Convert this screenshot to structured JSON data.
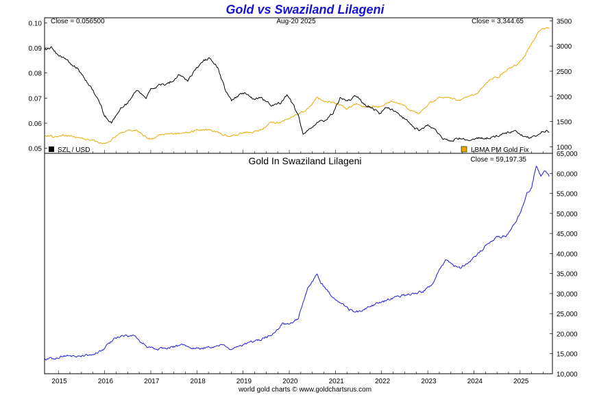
{
  "title": "Gold vs Swaziland Lilageni",
  "footer": "world gold charts © www.goldchartsrus.com",
  "colors": {
    "title": "#1414d2",
    "szl_line": "#000000",
    "gold_usd_line": "#e8a800",
    "gold_szl_line": "#1a1adc",
    "frame": "#000000",
    "background": "#ffffff"
  },
  "chart_data": [
    {
      "type": "line",
      "panel": "top",
      "title": "",
      "x_ticks": [
        "2015",
        "2016",
        "2017",
        "2018",
        "2019",
        "2020",
        "2021",
        "2022",
        "2023",
        "2024",
        "2025"
      ],
      "x_range": [
        2014.7,
        2025.7
      ],
      "left_axis": {
        "ticks": [
          "0.10",
          "0.09",
          "0.08",
          "0.07",
          "0.06",
          "0.05"
        ],
        "range": [
          0.048,
          0.102
        ]
      },
      "right_axis": {
        "ticks": [
          "3500",
          "3000",
          "2500",
          "2000",
          "1500",
          "1000"
        ],
        "range": [
          870,
          3560
        ]
      },
      "header": {
        "left": "Close = 0.056500",
        "center": "Aug-20  2025",
        "right": "Close = 3,344.65"
      },
      "legend": {
        "left": "SZL / USD",
        "right": "LBMA PM Gold Fix",
        "placement": "bottom"
      },
      "series": [
        {
          "name": "SZL / USD",
          "axis": "left",
          "x": [
            2014.7,
            2014.85,
            2015.0,
            2015.2,
            2015.4,
            2015.6,
            2015.75,
            2015.9,
            2016.0,
            2016.15,
            2016.35,
            2016.5,
            2016.7,
            2016.9,
            2017.0,
            2017.2,
            2017.4,
            2017.6,
            2017.8,
            2017.95,
            2018.05,
            2018.15,
            2018.3,
            2018.45,
            2018.6,
            2018.75,
            2018.9,
            2019.05,
            2019.2,
            2019.4,
            2019.6,
            2019.8,
            2019.95,
            2020.1,
            2020.2,
            2020.3,
            2020.45,
            2020.6,
            2020.75,
            2020.95,
            2021.1,
            2021.3,
            2021.45,
            2021.6,
            2021.8,
            2021.95,
            2022.1,
            2022.25,
            2022.4,
            2022.55,
            2022.7,
            2022.85,
            2023.0,
            2023.15,
            2023.3,
            2023.5,
            2023.7,
            2023.9,
            2024.1,
            2024.3,
            2024.5,
            2024.7,
            2024.9,
            2025.05,
            2025.2,
            2025.35,
            2025.5,
            2025.63
          ],
          "values": [
            0.089,
            0.09,
            0.087,
            0.085,
            0.082,
            0.077,
            0.073,
            0.068,
            0.063,
            0.06,
            0.066,
            0.068,
            0.073,
            0.07,
            0.074,
            0.075,
            0.076,
            0.079,
            0.077,
            0.081,
            0.083,
            0.085,
            0.086,
            0.082,
            0.074,
            0.069,
            0.071,
            0.072,
            0.07,
            0.07,
            0.067,
            0.068,
            0.071,
            0.067,
            0.063,
            0.055,
            0.058,
            0.06,
            0.061,
            0.064,
            0.07,
            0.069,
            0.071,
            0.068,
            0.066,
            0.064,
            0.066,
            0.065,
            0.063,
            0.061,
            0.058,
            0.057,
            0.059,
            0.058,
            0.054,
            0.053,
            0.054,
            0.053,
            0.054,
            0.054,
            0.055,
            0.056,
            0.057,
            0.055,
            0.054,
            0.055,
            0.057,
            0.0565
          ]
        },
        {
          "name": "LBMA PM Gold Fix",
          "axis": "right",
          "x": [
            2014.7,
            2014.9,
            2015.1,
            2015.3,
            2015.5,
            2015.75,
            2015.95,
            2016.1,
            2016.3,
            2016.5,
            2016.7,
            2016.9,
            2017.0,
            2017.3,
            2017.6,
            2017.8,
            2018.0,
            2018.2,
            2018.45,
            2018.65,
            2018.85,
            2019.0,
            2019.2,
            2019.4,
            2019.6,
            2019.8,
            2020.0,
            2020.15,
            2020.3,
            2020.45,
            2020.6,
            2020.75,
            2020.95,
            2021.1,
            2021.25,
            2021.45,
            2021.6,
            2021.8,
            2022.0,
            2022.2,
            2022.4,
            2022.6,
            2022.8,
            2022.95,
            2023.1,
            2023.3,
            2023.5,
            2023.7,
            2023.9,
            2024.05,
            2024.2,
            2024.35,
            2024.55,
            2024.75,
            2024.95,
            2025.1,
            2025.25,
            2025.4,
            2025.55,
            2025.63
          ],
          "values": [
            1230,
            1200,
            1230,
            1200,
            1170,
            1120,
            1070,
            1100,
            1250,
            1320,
            1330,
            1200,
            1160,
            1250,
            1260,
            1280,
            1330,
            1340,
            1290,
            1210,
            1230,
            1290,
            1290,
            1340,
            1480,
            1480,
            1560,
            1630,
            1700,
            1800,
            1970,
            1900,
            1880,
            1830,
            1750,
            1860,
            1800,
            1790,
            1800,
            1900,
            1850,
            1730,
            1660,
            1800,
            1900,
            2000,
            1970,
            1920,
            2000,
            2050,
            2200,
            2330,
            2400,
            2550,
            2640,
            2800,
            3050,
            3300,
            3350,
            3344.65
          ]
        }
      ]
    },
    {
      "type": "line",
      "panel": "bottom",
      "title": "Gold In Swaziland Lilageni",
      "x_ticks": [
        "2015",
        "2016",
        "2017",
        "2018",
        "2019",
        "2020",
        "2021",
        "2022",
        "2023",
        "2024",
        "2025"
      ],
      "x_range": [
        2014.7,
        2025.7
      ],
      "right_axis": {
        "ticks": [
          "65,000",
          "60,000",
          "55,000",
          "50,000",
          "45,000",
          "40,000",
          "35,000",
          "30,000",
          "25,000",
          "20,000",
          "15,000",
          "10,000"
        ],
        "range": [
          10000,
          65000
        ]
      },
      "header": {
        "right": "Close = 59,197.35"
      },
      "series": [
        {
          "name": "",
          "axis": "right",
          "x": [
            2014.7,
            2014.9,
            2015.1,
            2015.3,
            2015.6,
            2015.9,
            2016.0,
            2016.2,
            2016.4,
            2016.6,
            2016.8,
            2016.95,
            2017.1,
            2017.3,
            2017.5,
            2017.7,
            2017.9,
            2018.1,
            2018.3,
            2018.5,
            2018.7,
            2018.9,
            2019.1,
            2019.3,
            2019.5,
            2019.7,
            2019.85,
            2020.0,
            2020.1,
            2020.2,
            2020.3,
            2020.4,
            2020.5,
            2020.6,
            2020.7,
            2020.8,
            2020.95,
            2021.1,
            2021.3,
            2021.5,
            2021.7,
            2021.9,
            2022.1,
            2022.3,
            2022.5,
            2022.7,
            2022.9,
            2023.1,
            2023.25,
            2023.4,
            2023.55,
            2023.7,
            2023.9,
            2024.1,
            2024.3,
            2024.5,
            2024.7,
            2024.9,
            2025.05,
            2025.15,
            2025.25,
            2025.35,
            2025.45,
            2025.55,
            2025.63
          ],
          "values": [
            13700,
            13800,
            14500,
            14400,
            14500,
            15500,
            16500,
            18500,
            19600,
            19500,
            18000,
            16400,
            16200,
            16300,
            16800,
            17200,
            16200,
            16400,
            16500,
            17200,
            16300,
            16700,
            17600,
            18300,
            19200,
            20200,
            22500,
            22300,
            22800,
            24000,
            28000,
            31500,
            33000,
            35000,
            32500,
            31000,
            29000,
            27500,
            26000,
            25500,
            26500,
            27500,
            28200,
            29200,
            29500,
            30000,
            30500,
            32500,
            36000,
            38500,
            37000,
            36500,
            38000,
            40000,
            42500,
            44000,
            44500,
            47500,
            51500,
            55000,
            56500,
            62000,
            59500,
            60500,
            59197.35
          ]
        }
      ]
    }
  ]
}
